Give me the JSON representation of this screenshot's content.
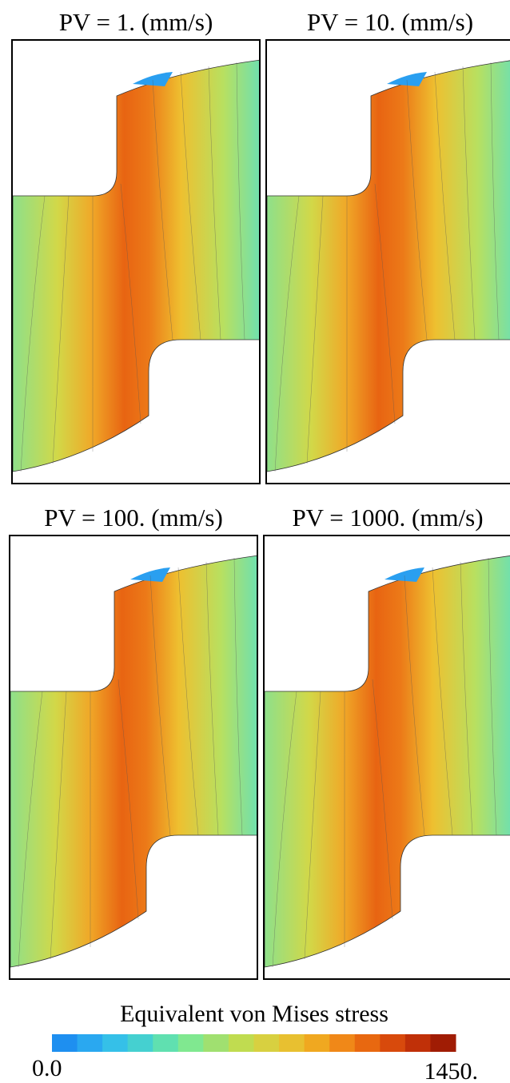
{
  "panels": [
    {
      "title": "PV = 1. (mm/s)"
    },
    {
      "title": "PV = 10. (mm/s)"
    },
    {
      "title": "PV = 100. (mm/s)"
    },
    {
      "title": "PV = 1000. (mm/s)"
    }
  ],
  "colorbar": {
    "label": "Equivalent von Mises stress",
    "min_label": "0.0",
    "max_label": "1450.",
    "colors": [
      "#1e8ff0",
      "#2aa8f0",
      "#35c0e8",
      "#45d0d0",
      "#60e0b0",
      "#80e890",
      "#a0e070",
      "#c0dc50",
      "#d8d040",
      "#e8c030",
      "#f0a820",
      "#f08818",
      "#e86810",
      "#d84a0c",
      "#c03008",
      "#a01c04"
    ]
  }
}
